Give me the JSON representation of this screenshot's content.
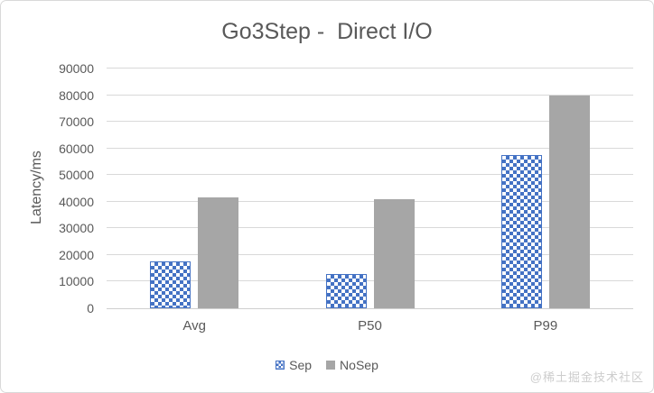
{
  "watermark": "@稀土掘金技术社区",
  "chart_data": {
    "type": "bar",
    "title": "Go3Step -  Direct I/O",
    "categories": [
      "Avg",
      "P50",
      "P99"
    ],
    "series": [
      {
        "name": "Sep",
        "values": [
          17500,
          13000,
          57500
        ],
        "color": "#4472C4",
        "pattern": "checker"
      },
      {
        "name": "NoSep",
        "values": [
          41500,
          41000,
          80000
        ],
        "color": "#A6A6A6",
        "pattern": "solid"
      }
    ],
    "xlabel": "",
    "ylabel": "Latency/ms",
    "ylim": [
      0,
      90000
    ],
    "ytick_step": 10000,
    "grid": true,
    "legend_position": "bottom",
    "colors": {
      "text": "#595959",
      "gridline": "#D9D9D9",
      "axis_line": "#CFCFCF",
      "watermark": "#CDCDCD"
    }
  }
}
